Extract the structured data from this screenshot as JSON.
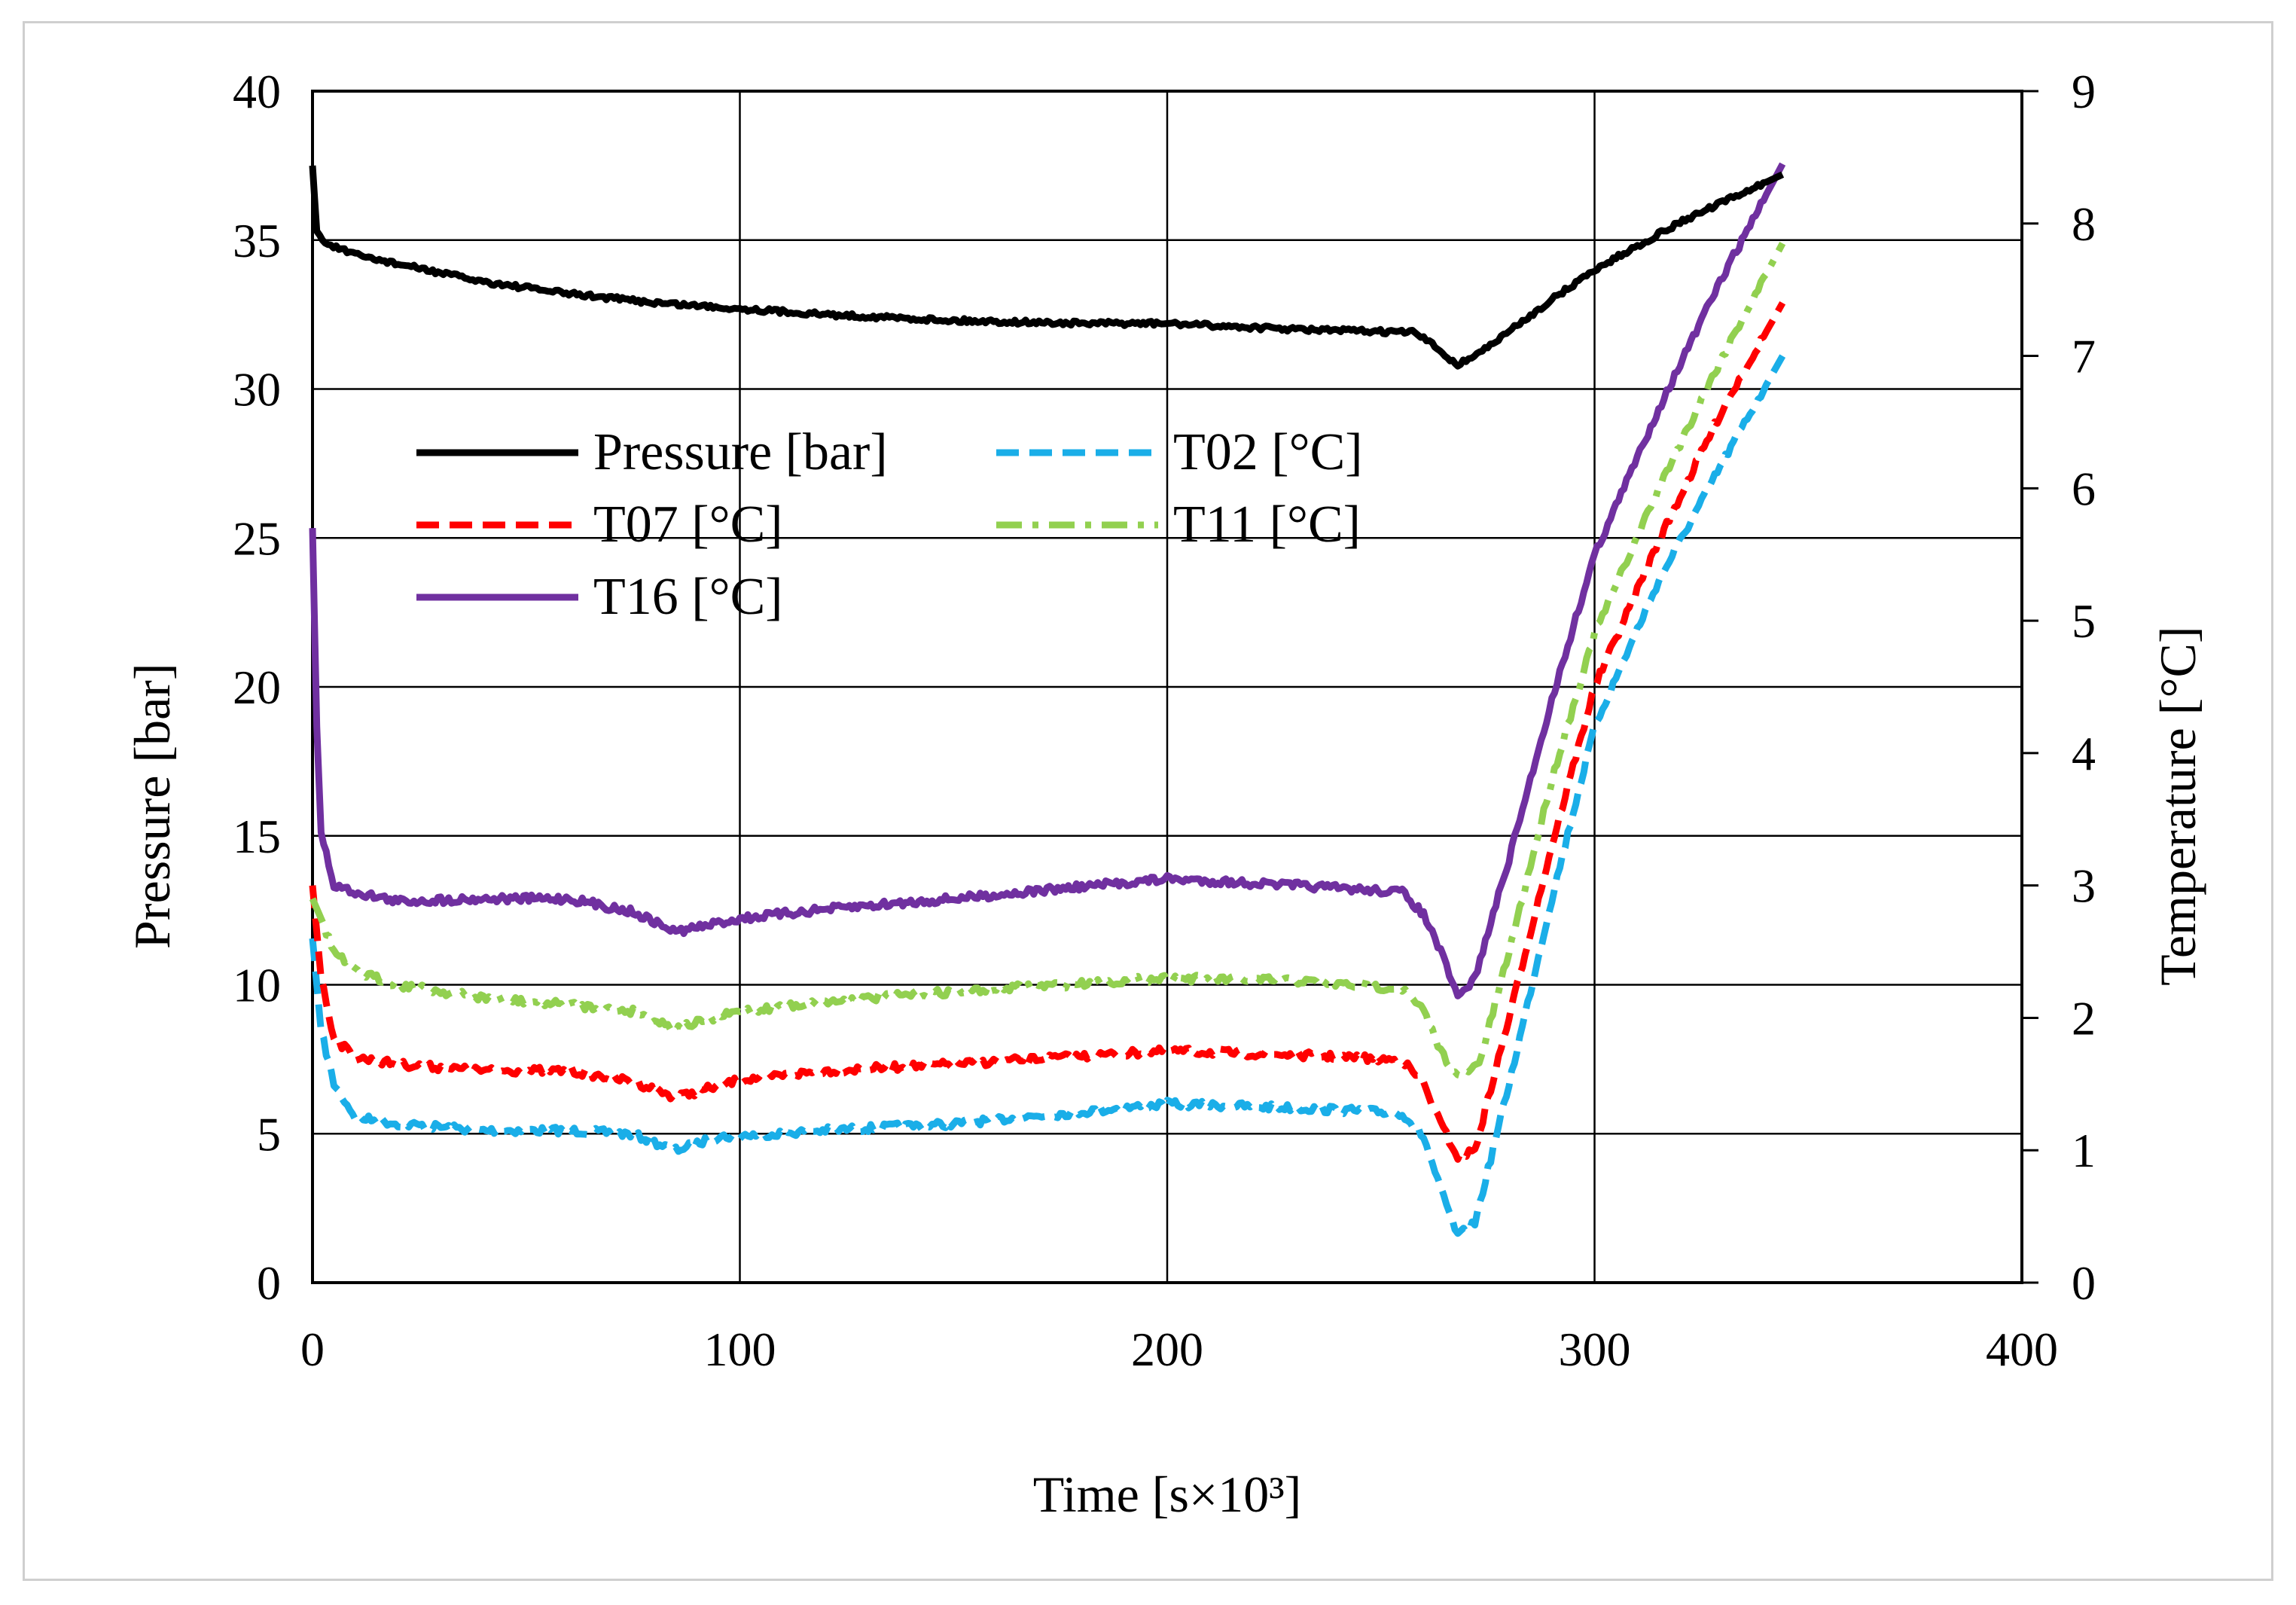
{
  "chart_data": {
    "type": "line",
    "title": "",
    "xlabel": "Time [s×10³]",
    "ylabel_left": "Pressure [bar]",
    "ylabel_right": "Temperature [°C]",
    "xlim": [
      0,
      400
    ],
    "ylim_left": [
      0,
      40
    ],
    "ylim_right": [
      0,
      9
    ],
    "x_ticks": [
      0,
      100,
      200,
      300,
      400
    ],
    "y_left_ticks": [
      0,
      5,
      10,
      15,
      20,
      25,
      30,
      35,
      40
    ],
    "y_right_ticks": [
      0,
      1,
      2,
      3,
      4,
      5,
      6,
      7,
      8,
      9
    ],
    "grid": true,
    "legend_position": "upper-left-inside",
    "series": [
      {
        "name": "Pressure [bar]",
        "axis": "left",
        "color": "#000000",
        "style": "solid",
        "points": [
          [
            0,
            37.5
          ],
          [
            1,
            35.3
          ],
          [
            3,
            34.9
          ],
          [
            10,
            34.5
          ],
          [
            20,
            34.2
          ],
          [
            30,
            33.9
          ],
          [
            40,
            33.6
          ],
          [
            60,
            33.2
          ],
          [
            80,
            32.9
          ],
          [
            100,
            32.7
          ],
          [
            120,
            32.5
          ],
          [
            150,
            32.3
          ],
          [
            180,
            32.2
          ],
          [
            200,
            32.2
          ],
          [
            230,
            32.0
          ],
          [
            258,
            31.9
          ],
          [
            262,
            31.5
          ],
          [
            268,
            30.8
          ],
          [
            275,
            31.4
          ],
          [
            290,
            33.0
          ],
          [
            300,
            34.0
          ],
          [
            320,
            35.6
          ],
          [
            335,
            36.6
          ],
          [
            344,
            37.2
          ]
        ]
      },
      {
        "name": "T02 [°C]",
        "axis": "right",
        "color": "#1aaee8",
        "style": "dashed",
        "points": [
          [
            0,
            2.6
          ],
          [
            2,
            1.9
          ],
          [
            5,
            1.5
          ],
          [
            10,
            1.25
          ],
          [
            20,
            1.2
          ],
          [
            40,
            1.15
          ],
          [
            60,
            1.15
          ],
          [
            75,
            1.12
          ],
          [
            85,
            1.0
          ],
          [
            95,
            1.1
          ],
          [
            120,
            1.15
          ],
          [
            150,
            1.2
          ],
          [
            200,
            1.35
          ],
          [
            230,
            1.32
          ],
          [
            255,
            1.28
          ],
          [
            260,
            1.1
          ],
          [
            264,
            0.7
          ],
          [
            268,
            0.35
          ],
          [
            272,
            0.45
          ],
          [
            280,
            1.5
          ],
          [
            290,
            2.9
          ],
          [
            300,
            4.2
          ],
          [
            315,
            5.3
          ],
          [
            330,
            6.2
          ],
          [
            344,
            7.0
          ]
        ]
      },
      {
        "name": "T07 [°C]",
        "axis": "right",
        "color": "#ff0000",
        "style": "dashed",
        "points": [
          [
            0,
            3.0
          ],
          [
            2,
            2.3
          ],
          [
            5,
            1.85
          ],
          [
            10,
            1.7
          ],
          [
            20,
            1.65
          ],
          [
            40,
            1.6
          ],
          [
            60,
            1.6
          ],
          [
            75,
            1.52
          ],
          [
            85,
            1.4
          ],
          [
            100,
            1.53
          ],
          [
            120,
            1.6
          ],
          [
            150,
            1.65
          ],
          [
            200,
            1.75
          ],
          [
            230,
            1.72
          ],
          [
            255,
            1.68
          ],
          [
            260,
            1.5
          ],
          [
            264,
            1.2
          ],
          [
            268,
            0.95
          ],
          [
            272,
            1.0
          ],
          [
            280,
            2.0
          ],
          [
            290,
            3.3
          ],
          [
            300,
            4.5
          ],
          [
            315,
            5.6
          ],
          [
            330,
            6.6
          ],
          [
            344,
            7.4
          ]
        ]
      },
      {
        "name": "T11 [°C]",
        "axis": "right",
        "color": "#92d050",
        "style": "dashdot",
        "points": [
          [
            0,
            2.9
          ],
          [
            2,
            2.75
          ],
          [
            5,
            2.5
          ],
          [
            10,
            2.35
          ],
          [
            20,
            2.25
          ],
          [
            40,
            2.15
          ],
          [
            60,
            2.1
          ],
          [
            75,
            2.05
          ],
          [
            85,
            1.92
          ],
          [
            100,
            2.05
          ],
          [
            120,
            2.12
          ],
          [
            150,
            2.2
          ],
          [
            200,
            2.3
          ],
          [
            230,
            2.28
          ],
          [
            255,
            2.22
          ],
          [
            260,
            2.05
          ],
          [
            264,
            1.75
          ],
          [
            268,
            1.55
          ],
          [
            273,
            1.65
          ],
          [
            280,
            2.5
          ],
          [
            290,
            3.8
          ],
          [
            300,
            4.9
          ],
          [
            315,
            6.0
          ],
          [
            330,
            7.0
          ],
          [
            344,
            7.85
          ]
        ]
      },
      {
        "name": "T16 [°C]",
        "axis": "right",
        "color": "#7030a0",
        "style": "solid",
        "points": [
          [
            0,
            5.7
          ],
          [
            1,
            4.2
          ],
          [
            2,
            3.4
          ],
          [
            5,
            3.0
          ],
          [
            10,
            2.95
          ],
          [
            20,
            2.88
          ],
          [
            40,
            2.9
          ],
          [
            60,
            2.9
          ],
          [
            75,
            2.8
          ],
          [
            85,
            2.65
          ],
          [
            100,
            2.75
          ],
          [
            120,
            2.82
          ],
          [
            150,
            2.9
          ],
          [
            200,
            3.05
          ],
          [
            230,
            3.0
          ],
          [
            255,
            2.95
          ],
          [
            260,
            2.78
          ],
          [
            264,
            2.5
          ],
          [
            268,
            2.15
          ],
          [
            272,
            2.3
          ],
          [
            280,
            3.2
          ],
          [
            290,
            4.4
          ],
          [
            300,
            5.5
          ],
          [
            315,
            6.6
          ],
          [
            330,
            7.6
          ],
          [
            344,
            8.45
          ]
        ]
      }
    ]
  }
}
